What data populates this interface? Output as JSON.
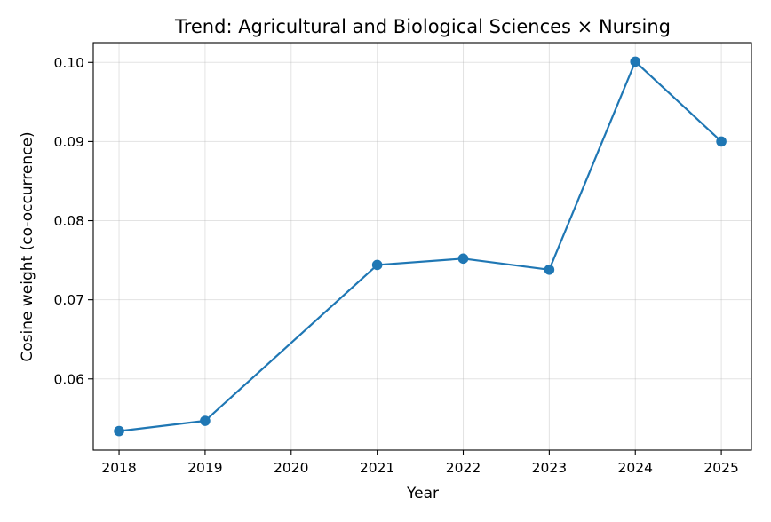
{
  "chart_data": {
    "type": "line",
    "title": "Trend: Agricultural and Biological Sciences × Nursing",
    "xlabel": "Year",
    "ylabel": "Cosine weight (co-occurrence)",
    "x": [
      "2018",
      "2019",
      "2020",
      "2021",
      "2022",
      "2023",
      "2024",
      "2025"
    ],
    "xticks": [
      "2018",
      "2019",
      "2020",
      "2021",
      "2022",
      "2023",
      "2024",
      "2025"
    ],
    "yticks": [
      "0.06",
      "0.07",
      "0.08",
      "0.09",
      "0.10"
    ],
    "ylim": [
      0.051,
      0.1025
    ],
    "grid": true,
    "series": [
      {
        "color": "#1f77b4",
        "points": [
          {
            "x": 2018,
            "y": 0.0534
          },
          {
            "x": 2019,
            "y": 0.0547
          },
          {
            "x": 2021,
            "y": 0.0744
          },
          {
            "x": 2022,
            "y": 0.0752
          },
          {
            "x": 2023,
            "y": 0.0738
          },
          {
            "x": 2024,
            "y": 0.1001
          },
          {
            "x": 2025,
            "y": 0.09
          }
        ]
      }
    ]
  }
}
